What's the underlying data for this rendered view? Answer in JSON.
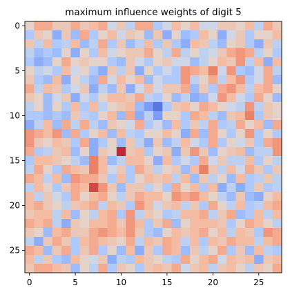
{
  "chart_data": {
    "type": "heatmap",
    "title": "maximum influence weights of digit 5",
    "colormap": "coolwarm",
    "colormap_stops": [
      "#3b4cc0",
      "#6f92f3",
      "#aac7fd",
      "#dddddd",
      "#f7b89c",
      "#e7745b",
      "#b40426"
    ],
    "rows": 28,
    "cols": 28,
    "x_ticks": [
      0,
      5,
      10,
      15,
      20,
      25
    ],
    "y_ticks": [
      0,
      5,
      10,
      15,
      20,
      25
    ],
    "x_tick_labels": [
      "0",
      "5",
      "10",
      "15",
      "20",
      "25"
    ],
    "y_tick_labels": [
      "0",
      "5",
      "10",
      "15",
      "20",
      "25"
    ],
    "vmin": -1,
    "vmax": 1,
    "values": [
      [
        0.1,
        0.4,
        0.4,
        0.2,
        0.2,
        0.4,
        0.2,
        0.3,
        0.4,
        -0.1,
        0.2,
        -0.2,
        0.4,
        0.4,
        -0.3,
        -0.1,
        0.3,
        0.1,
        0.3,
        -0.1,
        -0.1,
        0.2,
        0.2,
        0.1,
        0.3,
        -0.2,
        0.4,
        0.2
      ],
      [
        -0.3,
        0.2,
        0.1,
        -0.5,
        0.2,
        -0.4,
        0.4,
        -0.3,
        0.1,
        0.3,
        -0.1,
        0.2,
        0.1,
        -0.4,
        0.2,
        -0.5,
        0.1,
        -0.4,
        -0.3,
        0.3,
        0.1,
        -0.5,
        -0.1,
        0.2,
        -0.3,
        0.1,
        0.1,
        0.3
      ],
      [
        0.2,
        -0.2,
        0.3,
        -0.3,
        -0.2,
        0.3,
        -0.4,
        -0.2,
        0.4,
        -0.3,
        0.2,
        -0.4,
        -0.2,
        0.3,
        -0.3,
        0.2,
        -0.3,
        -0.5,
        0.3,
        0.2,
        -0.2,
        -0.4,
        0.1,
        0.2,
        -0.3,
        -0.5,
        0.2,
        -0.2
      ],
      [
        -0.2,
        -0.4,
        -0.3,
        -0.4,
        0.1,
        -0.5,
        0.1,
        -0.3,
        0.3,
        -0.1,
        0.1,
        0.2,
        0.2,
        0.4,
        0.1,
        -0.2,
        0.4,
        -0.2,
        0.1,
        -0.2,
        -0.1,
        0.2,
        0.4,
        0.5,
        0.4,
        -0.2,
        0.1,
        -0.3
      ],
      [
        -0.3,
        -0.5,
        -0.4,
        0.1,
        0.4,
        0.1,
        0.2,
        0.1,
        0.1,
        -0.3,
        -0.4,
        0.2,
        -0.1,
        -0.3,
        0.1,
        0.2,
        -0.1,
        -0.1,
        -0.4,
        -0.2,
        0.1,
        0.3,
        0.2,
        0.5,
        -0.2,
        0.3,
        -0.5,
        0.3
      ],
      [
        0.1,
        -0.2,
        -0.1,
        -0.3,
        0.3,
        -0.1,
        0.1,
        -0.3,
        -0.5,
        0.2,
        -0.2,
        0.2,
        -0.5,
        0.1,
        -0.3,
        -0.1,
        -0.3,
        0.5,
        0.4,
        0.3,
        0.6,
        -0.1,
        0.5,
        -0.3,
        -0.4,
        -0.1,
        0.4,
        -0.2
      ],
      [
        0.2,
        -0.3,
        -0.4,
        0.3,
        -0.5,
        0.1,
        -0.2,
        -0.4,
        0.4,
        -0.1,
        0.3,
        0.1,
        0.3,
        -0.4,
        -0.1,
        -0.3,
        -0.3,
        0.5,
        -0.2,
        0.1,
        0.4,
        -0.2,
        0.3,
        0.5,
        -0.3,
        -0.1,
        0.4,
        -0.4
      ],
      [
        0.4,
        -0.2,
        0.3,
        0.2,
        -0.3,
        -0.1,
        0.2,
        -0.5,
        -0.2,
        -0.4,
        0.2,
        -0.5,
        -0.1,
        0.3,
        -0.1,
        0.2,
        0.2,
        0.4,
        -0.4,
        0.2,
        -0.3,
        0.4,
        0.5,
        0.3,
        -0.2,
        0.3,
        0.4,
        0.1
      ],
      [
        0.2,
        0.1,
        -0.4,
        -0.1,
        0.2,
        -0.5,
        -0.1,
        -0.3,
        0.1,
        0.3,
        0.3,
        0.2,
        0.4,
        -0.2,
        -0.3,
        0.1,
        -0.4,
        -0.2,
        -0.5,
        -0.4,
        -0.1,
        0.5,
        0.3,
        -0.1,
        -0.3,
        0.4,
        0.1,
        -0.4
      ],
      [
        -0.2,
        0.1,
        -0.4,
        0.1,
        -0.3,
        0.3,
        -0.3,
        0.3,
        -0.2,
        0.1,
        0.2,
        0.3,
        -0.4,
        -0.6,
        -0.8,
        -0.3,
        0.2,
        0.3,
        0.1,
        0.4,
        0.3,
        0.1,
        -0.1,
        -0.2,
        0.5,
        -0.2,
        0.2,
        0.1
      ],
      [
        -0.3,
        -0.3,
        -0.4,
        -0.3,
        -0.4,
        0.2,
        -0.2,
        -0.3,
        0.1,
        0.3,
        -0.4,
        0.4,
        -0.5,
        -0.2,
        -0.6,
        0.1,
        0.1,
        -0.3,
        0.4,
        0.3,
        -0.2,
        -0.4,
        0.2,
        0.3,
        0.6,
        -0.3,
        0.2,
        0.1
      ],
      [
        -0.5,
        -0.2,
        0.3,
        -0.4,
        0.4,
        -0.2,
        0.4,
        -0.2,
        -0.4,
        0.2,
        0.1,
        -0.1,
        0.4,
        -0.3,
        -0.1,
        -0.4,
        0.3,
        -0.3,
        0.2,
        -0.2,
        0.4,
        -0.3,
        -0.2,
        0.4,
        0.1,
        0.3,
        -0.4,
        0.4
      ],
      [
        0.5,
        0.4,
        0.3,
        0.5,
        -0.4,
        0.4,
        -0.3,
        0.1,
        0.3,
        -0.4,
        0.3,
        -0.2,
        -0.3,
        0.1,
        0.1,
        0.3,
        0.1,
        -0.5,
        0.4,
        -0.4,
        0.4,
        0.1,
        -0.3,
        0.1,
        0.5,
        -0.3,
        0.1,
        -0.3
      ],
      [
        0.5,
        0.2,
        0.1,
        0.3,
        0.2,
        -0.3,
        0.4,
        -0.5,
        -0.3,
        0.1,
        -0.4,
        0.2,
        -0.2,
        -0.5,
        0.2,
        -0.4,
        -0.2,
        0.3,
        -0.1,
        -0.3,
        0.4,
        -0.3,
        0.1,
        -0.1,
        0.2,
        -0.3,
        0.4,
        0.5
      ],
      [
        0.4,
        -0.3,
        -0.2,
        0.2,
        0.3,
        -0.4,
        0.1,
        -0.5,
        0.2,
        0.1,
        0.9,
        0.2,
        0.3,
        -0.3,
        0.1,
        0.2,
        -0.5,
        0.2,
        0.5,
        0.2,
        -0.4,
        0.1,
        0.2,
        0.3,
        -0.4,
        -0.2,
        -0.2,
        0.5
      ],
      [
        -0.3,
        0.3,
        0.3,
        0.2,
        0.1,
        -0.2,
        -0.4,
        0.6,
        0.3,
        -0.4,
        -0.2,
        0.3,
        0.3,
        0.1,
        -0.5,
        0.3,
        -0.3,
        -0.1,
        -0.3,
        0.4,
        -0.1,
        0.2,
        -0.2,
        -0.2,
        0.3,
        -0.3,
        0.1,
        -0.2
      ],
      [
        -0.2,
        0.4,
        0.1,
        -0.3,
        0.4,
        0.3,
        0.2,
        0.6,
        0.3,
        -0.1,
        0.2,
        -0.3,
        0.4,
        0.2,
        -0.2,
        0.1,
        0.2,
        -0.4,
        0.3,
        0.6,
        0.2,
        -0.2,
        0.3,
        -0.1,
        0.4,
        0.2,
        -0.3,
        0.2
      ],
      [
        0.4,
        0.3,
        -0.2,
        0.3,
        -0.4,
        0.5,
        0.4,
        0.4,
        0.2,
        -0.3,
        0.3,
        -0.3,
        0.1,
        0.3,
        0.2,
        0.3,
        -0.2,
        0.3,
        -0.4,
        0.2,
        -0.2,
        0.1,
        -0.4,
        0.3,
        -0.3,
        -0.2,
        0.2,
        -0.2
      ],
      [
        -0.2,
        0.3,
        0.1,
        -0.3,
        0.2,
        0.4,
        0.3,
        0.8,
        0.5,
        0.2,
        -0.4,
        0.2,
        0.2,
        -0.2,
        0.1,
        -0.3,
        0.4,
        0.1,
        0.3,
        -0.3,
        0.3,
        -0.5,
        -0.2,
        -0.5,
        -0.3,
        0.2,
        -0.3,
        -0.2
      ],
      [
        0.3,
        -0.2,
        0.2,
        -0.1,
        -0.3,
        0.4,
        0.1,
        0.3,
        0.4,
        0.1,
        -0.2,
        0.2,
        0.4,
        0.3,
        0.3,
        0.1,
        0.5,
        0.4,
        0.5,
        0.3,
        0.1,
        -0.2,
        -0.4,
        0.2,
        -0.4,
        -0.5,
        0.1,
        0.3
      ],
      [
        0.3,
        0.4,
        0.2,
        0.1,
        -0.2,
        0.2,
        0.3,
        0.4,
        -0.2,
        0.3,
        0.2,
        -0.3,
        0.5,
        0.3,
        -0.1,
        0.2,
        0.3,
        -0.2,
        0.2,
        -0.3,
        0.4,
        0.1,
        -0.2,
        0.3,
        -0.3,
        -0.2,
        0.3,
        0.4
      ],
      [
        0.2,
        0.3,
        0.3,
        -0.2,
        0.3,
        -0.4,
        0.1,
        -0.2,
        0.3,
        0.4,
        -0.3,
        0.5,
        -0.2,
        0.2,
        0.1,
        -0.3,
        -0.2,
        0.3,
        0.3,
        0.4,
        -0.2,
        0.2,
        0.4,
        -0.4,
        -0.3,
        0.3,
        -0.2,
        0.3
      ],
      [
        0.4,
        0.3,
        0.4,
        -0.2,
        -0.5,
        0.2,
        0.1,
        0.3,
        0.3,
        0.4,
        0.2,
        0.5,
        0.3,
        -0.3,
        0.2,
        0.4,
        -0.4,
        0.1,
        0.3,
        0.3,
        0.3,
        0.2,
        -0.3,
        0.1,
        0.4,
        0.3,
        0.1,
        -0.2
      ],
      [
        0.2,
        0.1,
        -0.4,
        0.3,
        0.4,
        0.2,
        0.2,
        0.4,
        0.5,
        0.4,
        0.3,
        0.5,
        0.2,
        -0.3,
        -0.4,
        0.1,
        0.3,
        0.2,
        0.3,
        0.4,
        0.1,
        0.3,
        -0.2,
        0.3,
        0.2,
        -0.3,
        0.5,
        0.4
      ],
      [
        -0.2,
        -0.5,
        0.2,
        0.4,
        0.2,
        -0.3,
        0.3,
        0.4,
        0.3,
        0.2,
        0.1,
        0.4,
        -0.2,
        0.3,
        0.2,
        0.4,
        0.3,
        -0.2,
        0.3,
        -0.3,
        0.3,
        0.2,
        0.4,
        0.3,
        0.3,
        -0.2,
        0.3,
        0.4
      ],
      [
        0.4,
        0.3,
        -0.4,
        0.2,
        0.4,
        -0.3,
        0.2,
        0.4,
        -0.3,
        0.1,
        -0.4,
        0.3,
        -0.5,
        0.2,
        -0.3,
        0.4,
        0.3,
        -0.4,
        0.2,
        -0.2,
        0.1,
        0.4,
        -0.3,
        0.2,
        -0.4,
        0.3,
        -0.2,
        -0.3
      ],
      [
        0.3,
        -0.2,
        0.2,
        -0.3,
        -0.4,
        0.3,
        0.1,
        -0.1,
        0.2,
        -0.5,
        -0.2,
        -0.3,
        0.3,
        0.2,
        0.1,
        -0.2,
        -0.3,
        0.4,
        0.1,
        0.3,
        0.4,
        -0.1,
        0.3,
        0.2,
        0.3,
        -0.5,
        0.2,
        0.3
      ],
      [
        0.2,
        0.4,
        0.4,
        0.3,
        0.2,
        -0.4,
        0.1,
        -0.2,
        0.4,
        -0.3,
        0.2,
        0.1,
        -0.3,
        0.2,
        0.3,
        0.2,
        0.4,
        -0.1,
        0.2,
        0.3,
        -0.2,
        0.2,
        0.3,
        0.1,
        -0.2,
        0.2,
        0.1,
        0.4
      ]
    ]
  }
}
